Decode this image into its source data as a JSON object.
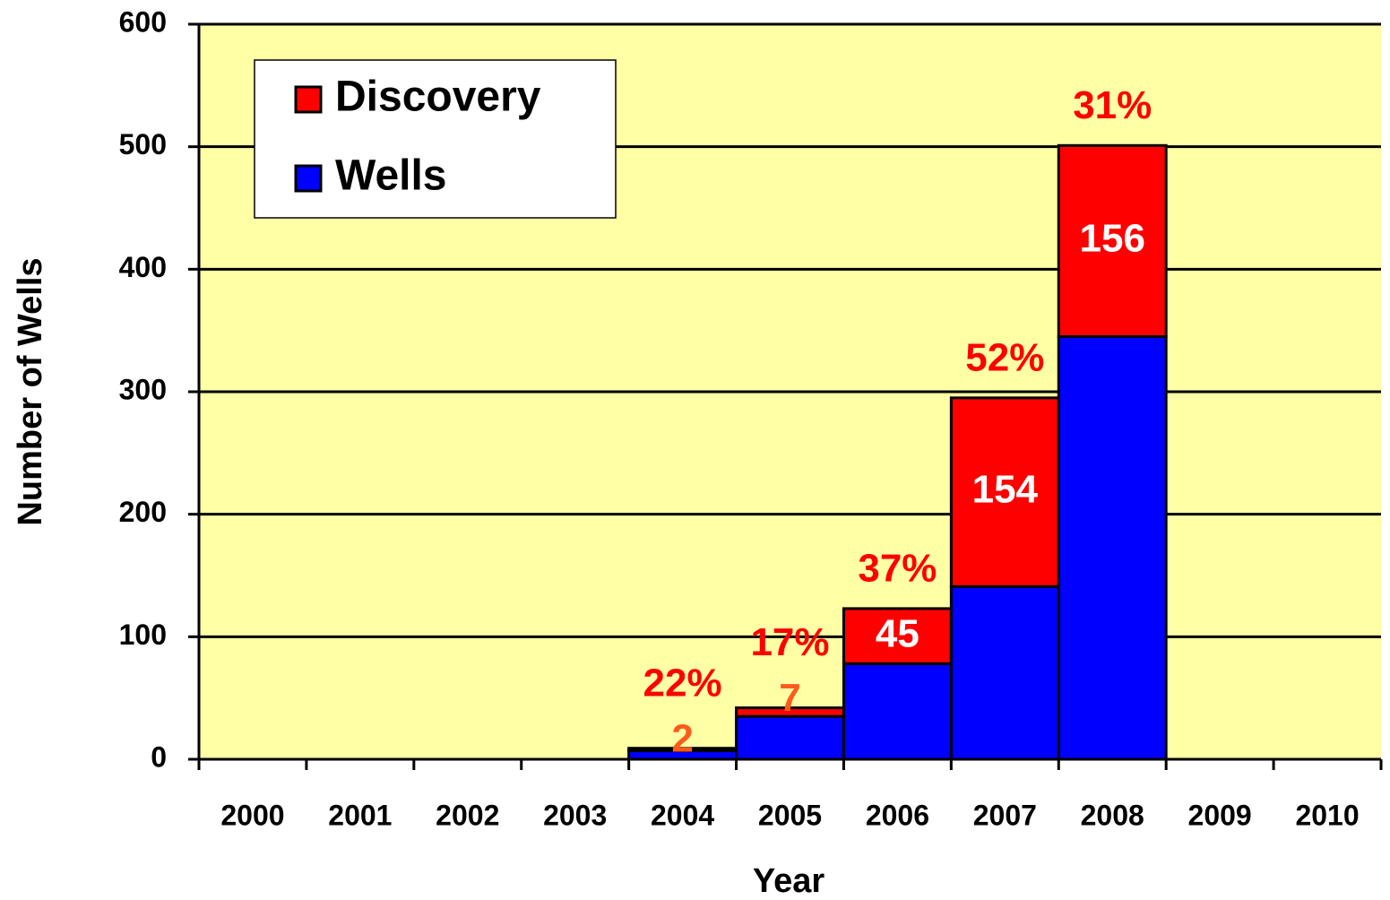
{
  "chart_data": {
    "type": "stacked_bar",
    "x_label": "Year",
    "y_label": "Number of Wells",
    "categories": [
      "2000",
      "2001",
      "2002",
      "2003",
      "2004",
      "2005",
      "2006",
      "2007",
      "2008",
      "2009",
      "2010"
    ],
    "series": [
      {
        "name": "Wells",
        "color": "#0000ff",
        "values": [
          null,
          null,
          null,
          null,
          7,
          35,
          78,
          141,
          345,
          null,
          null
        ]
      },
      {
        "name": "Discovery",
        "color": "#ff0000",
        "values": [
          null,
          null,
          null,
          null,
          2,
          7,
          45,
          154,
          156,
          null,
          null
        ]
      }
    ],
    "share_labels": [
      null,
      null,
      null,
      null,
      "22%",
      "17%",
      "37%",
      "52%",
      "31%",
      null,
      null
    ],
    "ylim": [
      0,
      600
    ],
    "yticks": [
      0,
      100,
      200,
      300,
      400,
      500,
      600
    ],
    "grid": true,
    "legend": "top-left",
    "background": "#ffffa6"
  }
}
